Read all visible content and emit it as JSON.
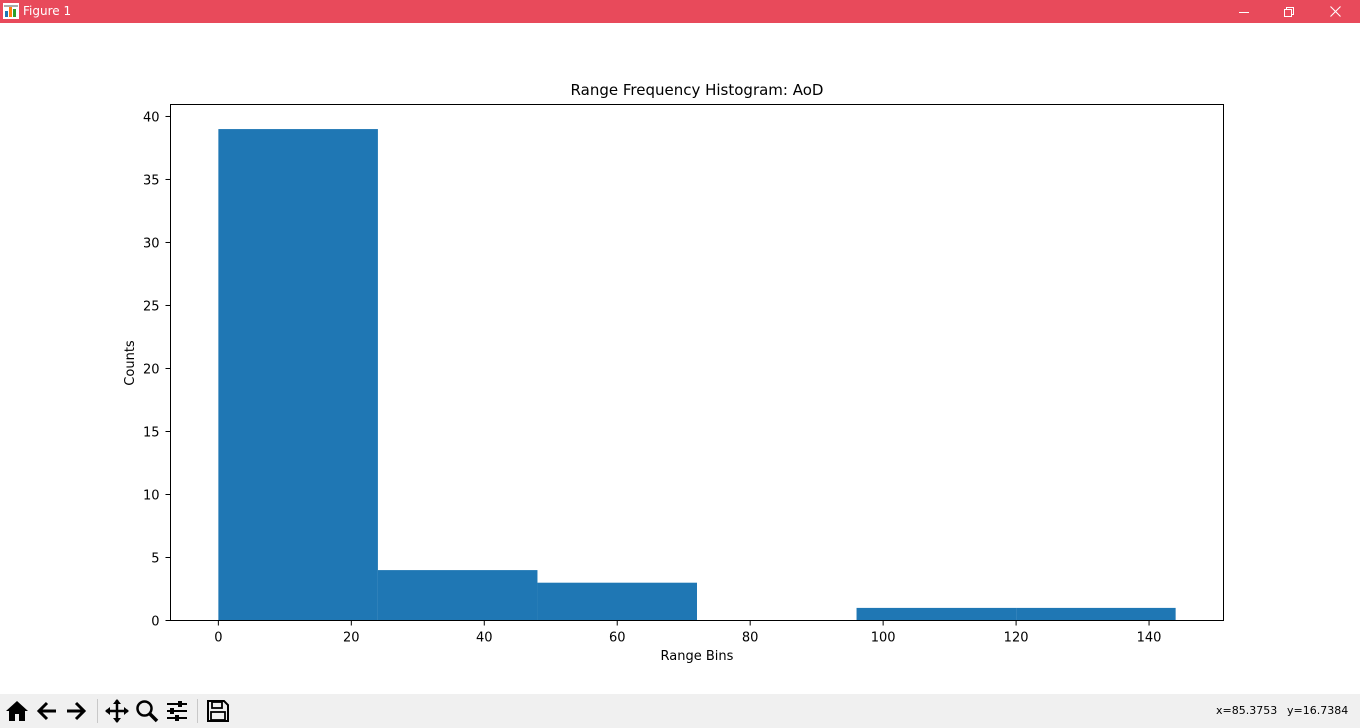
{
  "window": {
    "title": "Figure 1",
    "titlebar_color": "#e84a5b",
    "controls": [
      "minimize-icon",
      "restore-icon",
      "close-icon"
    ]
  },
  "toolbar": {
    "buttons": [
      "home-icon",
      "back-arrow-icon",
      "forward-arrow-icon",
      "pan-icon",
      "zoom-icon",
      "configure-subplots-icon",
      "save-icon"
    ],
    "coord_x": "x=85.3753",
    "coord_y": "y=16.7384"
  },
  "chart_data": {
    "type": "bar",
    "title": "Range Frequency Histogram: AoD",
    "xlabel": "Range Bins",
    "ylabel": "Counts",
    "bar_color": "#1f77b4",
    "bins": [
      {
        "start": 0,
        "end": 24,
        "count": 39
      },
      {
        "start": 24,
        "end": 48,
        "count": 4
      },
      {
        "start": 48,
        "end": 72,
        "count": 3
      },
      {
        "start": 72,
        "end": 96,
        "count": 0
      },
      {
        "start": 96,
        "end": 120,
        "count": 1
      },
      {
        "start": 120,
        "end": 144,
        "count": 1
      }
    ],
    "xlim": [
      -7.2,
      151.2
    ],
    "ylim": [
      0,
      40.95
    ],
    "xticks": [
      0,
      20,
      40,
      60,
      80,
      100,
      120,
      140
    ],
    "yticks": [
      0,
      5,
      10,
      15,
      20,
      25,
      30,
      35,
      40
    ],
    "grid": false,
    "legend": "none"
  }
}
